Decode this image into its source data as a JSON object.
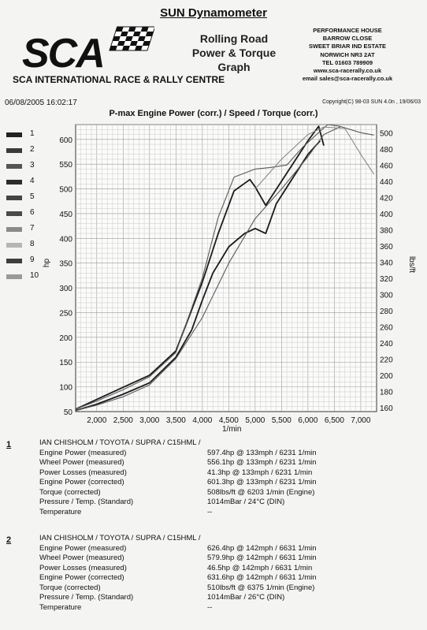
{
  "header": {
    "title": "SUN Dynamometer",
    "logo_text": "SCA",
    "logo_subtitle": "SCA INTERNATIONAL RACE & RALLY CENTRE",
    "graph_title_lines": [
      "Rolling Road",
      "Power & Torque",
      "Graph"
    ],
    "address_lines": [
      "PERFORMANCE HOUSE",
      "BARROW CLOSE",
      "SWEET BRIAR IND ESTATE",
      "NORWICH NR3 2AT",
      "TEL 01603 789909",
      "www.sca-racerally.co.uk",
      "email sales@sca-racerally.co.uk"
    ]
  },
  "meta": {
    "datetime": "06/08/2005 16:02:17",
    "copyright": "Copyright(C) 98-03 SUN 4.0n , 19/06/03"
  },
  "legend": {
    "items": [
      {
        "num": "1",
        "color": "#222222"
      },
      {
        "num": "2",
        "color": "#3a3a3a"
      },
      {
        "num": "3",
        "color": "#555555"
      },
      {
        "num": "4",
        "color": "#2c2c2c"
      },
      {
        "num": "5",
        "color": "#444444"
      },
      {
        "num": "6",
        "color": "#4a4a4a"
      },
      {
        "num": "7",
        "color": "#8a8a8a"
      },
      {
        "num": "8",
        "color": "#b5b5b5"
      },
      {
        "num": "9",
        "color": "#3d3d3d"
      },
      {
        "num": "10",
        "color": "#9a9a9a"
      }
    ]
  },
  "chart_data": {
    "type": "line",
    "title": "P-max Engine Power  (corr.) / Speed / Torque (corr.)",
    "xlabel": "1/min",
    "ylabel_left": "hp",
    "ylabel_right": "lbs/ft",
    "xlim": [
      1600,
      7300
    ],
    "ylim_left": [
      50,
      630
    ],
    "ylim_right": [
      155,
      510
    ],
    "x_ticks": [
      "2,000",
      "2,500",
      "3,000",
      "3,500",
      "4,000",
      "4,500",
      "5,000",
      "5,500",
      "6,000",
      "6,500",
      "7,000"
    ],
    "y_left_ticks": [
      "600",
      "550",
      "500",
      "450",
      "400",
      "350",
      "300",
      "250",
      "200",
      "150",
      "100",
      "50"
    ],
    "y_right_ticks": [
      "500",
      "480",
      "460",
      "440",
      "420",
      "400",
      "380",
      "360",
      "340",
      "320",
      "300",
      "280",
      "260",
      "240",
      "220",
      "200",
      "180",
      "160"
    ],
    "grid": true,
    "series": [
      {
        "axis": "left",
        "color": "#1a1a1a",
        "x": [
          1600,
          2000,
          2500,
          3000,
          3500,
          3800,
          4000,
          4200,
          4500,
          4800,
          5000,
          5200,
          5400,
          5700,
          6000,
          6231
        ],
        "y": [
          52,
          65,
          85,
          108,
          160,
          215,
          275,
          330,
          383,
          410,
          420,
          410,
          470,
          520,
          570,
          597.4
        ]
      },
      {
        "axis": "right",
        "color": "#1a1a1a",
        "x": [
          1600,
          2000,
          2500,
          3000,
          3500,
          4000,
          4300,
          4600,
          4900,
          5000,
          5200,
          5500,
          5800,
          6000,
          6203,
          6300
        ],
        "y": [
          158,
          170,
          185,
          200,
          230,
          315,
          375,
          428,
          442,
          433,
          410,
          440,
          470,
          490,
          508,
          484
        ]
      },
      {
        "axis": "left",
        "color": "#5a5a5a",
        "x": [
          1600,
          2000,
          2500,
          3000,
          3500,
          4000,
          4500,
          5000,
          5500,
          6000,
          6300,
          6631
        ],
        "y": [
          52,
          63,
          80,
          104,
          157,
          240,
          350,
          440,
          500,
          565,
          610,
          626.4
        ]
      },
      {
        "axis": "right",
        "color": "#5a5a5a",
        "x": [
          1600,
          2000,
          2500,
          3000,
          3500,
          4000,
          4300,
          4600,
          5000,
          5300,
          5600,
          5900,
          6200,
          6375,
          6600,
          7000,
          7250
        ],
        "y": [
          158,
          168,
          182,
          198,
          228,
          320,
          395,
          445,
          455,
          457,
          460,
          482,
          500,
          510,
          508,
          500,
          497
        ]
      },
      {
        "axis": "left",
        "color": "#8a8a8a",
        "x": [
          5000,
          5500,
          6000,
          6300,
          6700,
          7000,
          7250
        ],
        "y": [
          500,
          560,
          610,
          625,
          622,
          570,
          530
        ]
      }
    ]
  },
  "report1": {
    "num": "1",
    "rows": [
      {
        "label": "IAN CHISHOLM / TOYOTA / SUPRA / C15HML /",
        "value": ""
      },
      {
        "label": "Engine Power (measured)",
        "value": "597.4hp @ 133mph / 6231 1/min"
      },
      {
        "label": "Wheel Power (measured)",
        "value": "556.1hp @ 133mph / 6231 1/min"
      },
      {
        "label": "Power Losses (measured)",
        "value": "41.3hp @ 133mph / 6231 1/min"
      },
      {
        "label": "Engine Power (corrected)",
        "value": "601.3hp @ 133mph / 6231 1/min"
      },
      {
        "label": "Torque (corrected)",
        "value": "508lbs/ft @ 6203 1/min (Engine)"
      },
      {
        "label": "Pressure / Temp. (Standard)",
        "value": "1014mBar / 24°C (DIN)"
      },
      {
        "label": "Temperature",
        "value": "--"
      }
    ]
  },
  "report2": {
    "num": "2",
    "rows": [
      {
        "label": "IAN CHISHOLM / TOYOTA / SUPRA / C15HML /",
        "value": ""
      },
      {
        "label": "Engine Power (measured)",
        "value": "626.4hp @ 142mph / 6631 1/min"
      },
      {
        "label": "Wheel Power (measured)",
        "value": "579.9hp @ 142mph / 6631 1/min"
      },
      {
        "label": "Power Losses (measured)",
        "value": "46.5hp @ 142mph / 6631 1/min"
      },
      {
        "label": "Engine Power (corrected)",
        "value": "631.6hp @ 142mph / 6631 1/min"
      },
      {
        "label": "Torque (corrected)",
        "value": "510lbs/ft @ 6375 1/min (Engine)"
      },
      {
        "label": "Pressure / Temp. (Standard)",
        "value": "1014mBar / 26°C (DIN)"
      },
      {
        "label": "Temperature",
        "value": "--"
      }
    ]
  }
}
